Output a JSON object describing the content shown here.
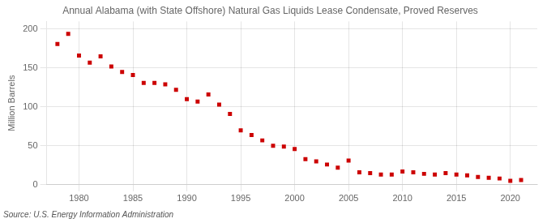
{
  "chart_data": {
    "type": "scatter",
    "title": "Annual Alabama (with State Offshore) Natural Gas Liquids Lease Condensate, Proved Reserves",
    "ylabel": "Million Barrels",
    "source": "Source: U.S. Energy Information Administration",
    "x": [
      1978,
      1979,
      1980,
      1981,
      1982,
      1983,
      1984,
      1985,
      1986,
      1987,
      1988,
      1989,
      1990,
      1991,
      1992,
      1993,
      1994,
      1995,
      1996,
      1997,
      1998,
      1999,
      2000,
      2001,
      2002,
      2003,
      2004,
      2005,
      2006,
      2007,
      2008,
      2009,
      2010,
      2011,
      2012,
      2013,
      2014,
      2015,
      2016,
      2017,
      2018,
      2019,
      2020,
      2021
    ],
    "values": [
      181,
      194,
      166,
      157,
      165,
      152,
      145,
      141,
      131,
      131,
      129,
      122,
      110,
      107,
      116,
      103,
      91,
      70,
      64,
      57,
      50,
      49,
      46,
      33,
      30,
      26,
      22,
      31,
      16,
      15,
      13,
      13,
      17,
      16,
      14,
      13,
      15,
      13,
      12,
      10,
      9,
      8,
      5,
      6
    ],
    "color": "#cc0000",
    "marker": "square",
    "xlim": [
      1977,
      2022.5
    ],
    "xticks": [
      1980,
      1985,
      1990,
      1995,
      2000,
      2005,
      2010,
      2015,
      2020
    ],
    "ylim": [
      0,
      210
    ],
    "yticks": [
      0,
      50,
      100,
      150,
      200
    ],
    "grid": true
  }
}
